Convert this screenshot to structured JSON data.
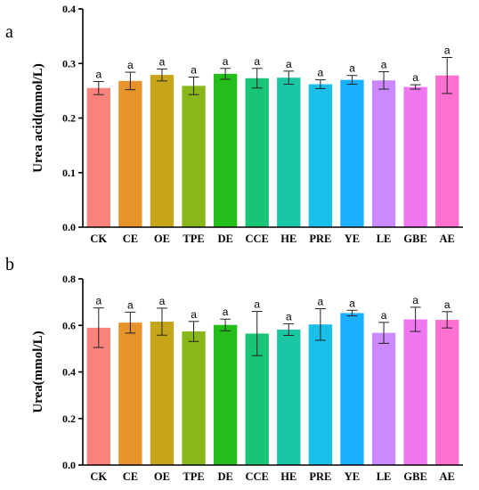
{
  "chart_data": [
    {
      "type": "bar",
      "panel": "a",
      "ylabel": "Urea acid(mmol/L)",
      "ylim": [
        0,
        0.4
      ],
      "yticks": [
        "0.0",
        "0.1",
        "0.2",
        "0.3",
        "0.4"
      ],
      "categories": [
        "CK",
        "CE",
        "OE",
        "TPE",
        "DE",
        "CCE",
        "HE",
        "PRE",
        "YE",
        "LE",
        "GBE",
        "AE"
      ],
      "values": [
        0.255,
        0.268,
        0.279,
        0.259,
        0.281,
        0.273,
        0.274,
        0.262,
        0.27,
        0.269,
        0.257,
        0.278
      ],
      "errors": [
        0.012,
        0.016,
        0.011,
        0.016,
        0.01,
        0.018,
        0.012,
        0.008,
        0.008,
        0.016,
        0.004,
        0.033
      ],
      "significance": [
        "a",
        "a",
        "a",
        "a",
        "a",
        "a",
        "a",
        "a",
        "a",
        "a",
        "a",
        "a"
      ],
      "colors": [
        "#F8766D",
        "#E68613",
        "#C09B00",
        "#7CAE00",
        "#0CB702",
        "#00BE67",
        "#00C19A",
        "#00B8E7",
        "#00A9FF",
        "#C77CFF",
        "#ED68ED",
        "#FF61CC"
      ],
      "grid": false
    },
    {
      "type": "bar",
      "panel": "b",
      "ylabel": "Urea(mmol/L)",
      "ylim": [
        0,
        0.8
      ],
      "yticks": [
        "0.0",
        "0.2",
        "0.4",
        "0.6",
        "0.8"
      ],
      "categories": [
        "CK",
        "CE",
        "OE",
        "TPE",
        "DE",
        "CCE",
        "HE",
        "PRE",
        "YE",
        "LE",
        "GBE",
        "AE"
      ],
      "values": [
        0.59,
        0.612,
        0.616,
        0.574,
        0.602,
        0.565,
        0.582,
        0.604,
        0.653,
        0.568,
        0.626,
        0.624
      ],
      "errors": [
        0.085,
        0.045,
        0.058,
        0.043,
        0.025,
        0.095,
        0.025,
        0.068,
        0.012,
        0.045,
        0.052,
        0.035
      ],
      "significance": [
        "a",
        "a",
        "a",
        "a",
        "a",
        "a",
        "a",
        "a",
        "a",
        "a",
        "a",
        "a"
      ],
      "colors": [
        "#F8766D",
        "#E68613",
        "#C09B00",
        "#7CAE00",
        "#0CB702",
        "#00BE67",
        "#00C19A",
        "#00B8E7",
        "#00A9FF",
        "#C77CFF",
        "#ED68ED",
        "#FF61CC"
      ],
      "grid": false
    }
  ]
}
